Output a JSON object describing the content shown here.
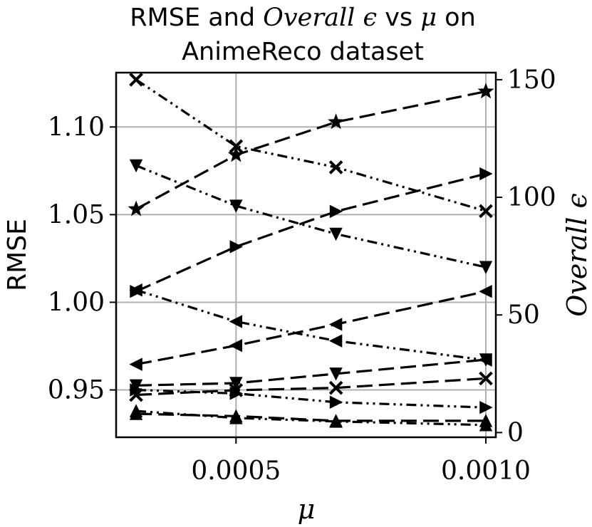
{
  "chart_data": {
    "type": "line",
    "title": {
      "line1_a": "RMSE and ",
      "line1_math": "Overall ϵ",
      "line1_b": " vs ",
      "line1_mu": "μ",
      "line1_c": " on",
      "line2": "AnimeReco dataset"
    },
    "xlabel": "μ",
    "ylabel_left": "RMSE",
    "ylabel_right": "Overall ϵ",
    "x": [
      0.0003,
      0.0005,
      0.0007,
      0.001
    ],
    "xlim": [
      0.00026,
      0.00102
    ],
    "xticks": [
      0.0005,
      0.001
    ],
    "xtick_labels": [
      "0.0005",
      "0.0010"
    ],
    "ylim_left": [
      0.923,
      1.131
    ],
    "yticks_left": [
      0.95,
      1.0,
      1.05,
      1.1
    ],
    "ytick_labels_left": [
      "0.95",
      "1.00",
      "1.05",
      "1.10"
    ],
    "ylim_right": [
      -2,
      153
    ],
    "yticks_right": [
      0,
      50,
      100,
      150
    ],
    "ytick_labels_right": [
      "0",
      "50",
      "100",
      "150"
    ],
    "grid": true,
    "series": [
      {
        "axis": "left",
        "marker": "x",
        "style": "dashdot",
        "values": [
          1.127,
          1.089,
          1.077,
          1.052
        ]
      },
      {
        "axis": "right",
        "marker": "star",
        "style": "dashed",
        "values": [
          95,
          118,
          132,
          145
        ]
      },
      {
        "axis": "left",
        "marker": "triangle-down",
        "style": "dashdot",
        "values": [
          1.078,
          1.055,
          1.039,
          1.02
        ]
      },
      {
        "axis": "right",
        "marker": "triangle-right",
        "style": "dashed",
        "values": [
          60,
          79,
          94,
          110
        ]
      },
      {
        "axis": "left",
        "marker": "triangle-left",
        "style": "dashdot",
        "values": [
          1.007,
          0.989,
          0.978,
          0.967
        ]
      },
      {
        "axis": "right",
        "marker": "triangle-left",
        "style": "dashed",
        "values": [
          29,
          37,
          46,
          60
        ]
      },
      {
        "axis": "right",
        "marker": "triangle-down",
        "style": "dashed",
        "values": [
          20,
          21,
          25,
          31
        ]
      },
      {
        "axis": "right",
        "marker": "x",
        "style": "dashed",
        "values": [
          16,
          18,
          19,
          23
        ]
      },
      {
        "axis": "left",
        "marker": "triangle-right",
        "style": "dashdot",
        "values": [
          0.95,
          0.948,
          0.943,
          0.94
        ]
      },
      {
        "axis": "left",
        "marker": "triangle-up",
        "style": "dashdot",
        "values": [
          0.938,
          0.934,
          0.932,
          0.93
        ]
      },
      {
        "axis": "right",
        "marker": "triangle-up",
        "style": "dashed",
        "values": [
          8,
          7,
          5,
          5
        ]
      }
    ]
  }
}
